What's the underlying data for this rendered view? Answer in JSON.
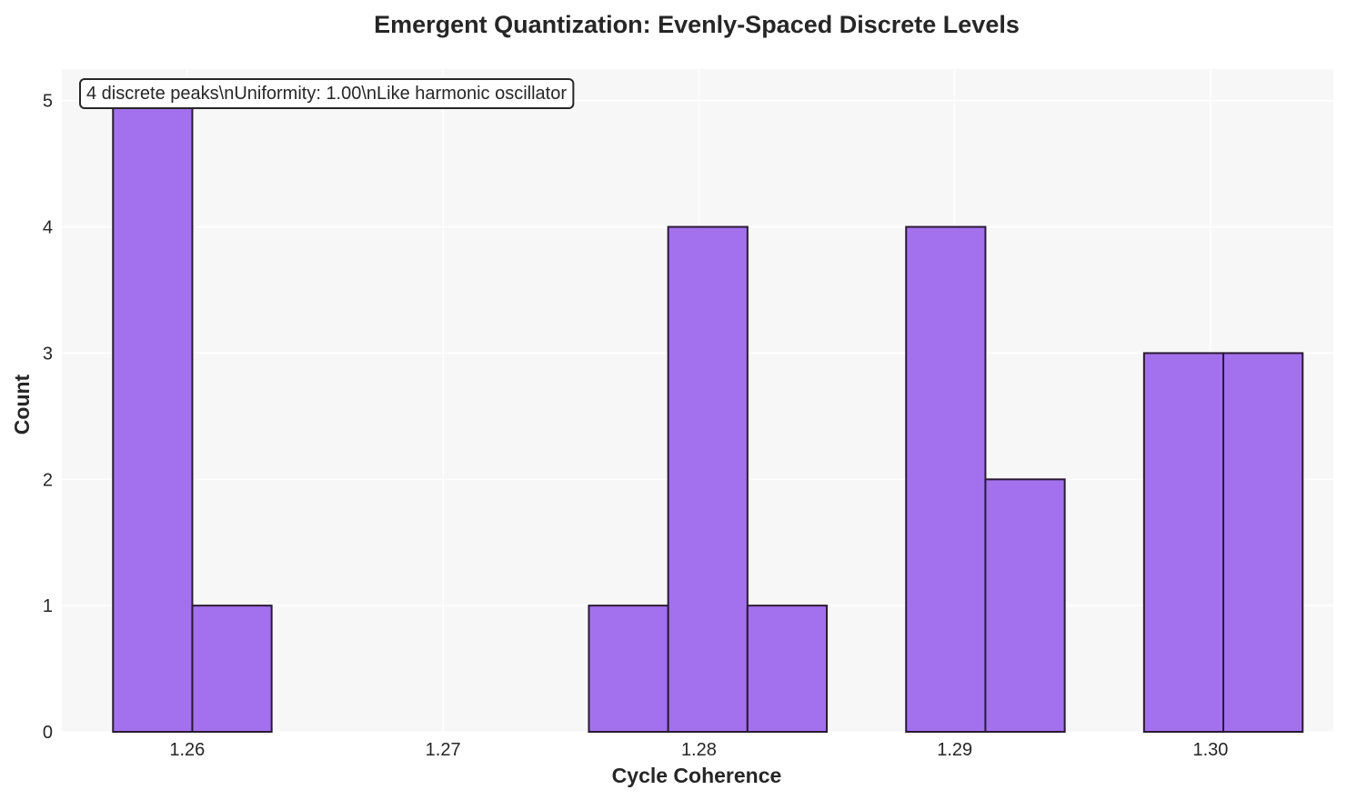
{
  "chart_data": {
    "type": "bar",
    "title": "Emergent Quantization: Evenly-Spaced Discrete Levels",
    "xlabel": "Cycle Coherence",
    "ylabel": "Count",
    "xlim": [
      1.2551,
      1.3048
    ],
    "ylim": [
      0,
      5.25
    ],
    "xticks": [
      "1.26",
      "1.27",
      "1.28",
      "1.29",
      "1.30"
    ],
    "xtick_values": [
      1.26,
      1.27,
      1.28,
      1.29,
      1.3
    ],
    "yticks": [
      "0",
      "1",
      "2",
      "3",
      "4",
      "5"
    ],
    "ytick_values": [
      0,
      1,
      2,
      3,
      4,
      5
    ],
    "grid": true,
    "bin_width": 0.0031,
    "bins": [
      {
        "start": 1.2571,
        "end": 1.2602,
        "count": 5
      },
      {
        "start": 1.2602,
        "end": 1.2633,
        "count": 1
      },
      {
        "start": 1.2633,
        "end": 1.2664,
        "count": 0
      },
      {
        "start": 1.2664,
        "end": 1.2695,
        "count": 0
      },
      {
        "start": 1.2695,
        "end": 1.2726,
        "count": 0
      },
      {
        "start": 1.2726,
        "end": 1.2757,
        "count": 0
      },
      {
        "start": 1.2757,
        "end": 1.2788,
        "count": 1
      },
      {
        "start": 1.2788,
        "end": 1.2819,
        "count": 4
      },
      {
        "start": 1.2819,
        "end": 1.285,
        "count": 1
      },
      {
        "start": 1.285,
        "end": 1.2881,
        "count": 0
      },
      {
        "start": 1.2881,
        "end": 1.2912,
        "count": 4
      },
      {
        "start": 1.2912,
        "end": 1.2943,
        "count": 2
      },
      {
        "start": 1.2943,
        "end": 1.2974,
        "count": 0
      },
      {
        "start": 1.2974,
        "end": 1.3005,
        "count": 3
      },
      {
        "start": 1.3005,
        "end": 1.3036,
        "count": 3
      }
    ],
    "bar_color": "#a371ee",
    "edge_color": "#2a1a35",
    "annotation": "4 discrete peaks\\nUniformity: 1.00\\nLike harmonic oscillator",
    "annotation_placement": "top-left"
  },
  "colors": {
    "plot_background": "#f7f7f7",
    "grid": "#ffffff",
    "text": "#262626"
  }
}
